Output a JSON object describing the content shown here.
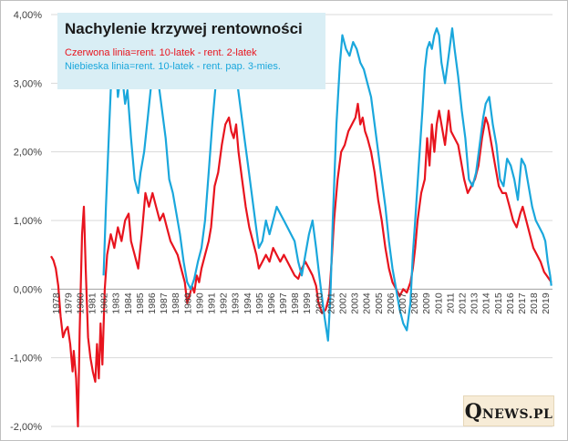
{
  "chart_data": {
    "type": "line",
    "title": "Nachylenie krzywej rentowności",
    "ylim": [
      -2.0,
      4.0
    ],
    "y_ticks": [
      "4,00%",
      "3,00%",
      "2,00%",
      "1,00%",
      "0,00%",
      "-1,00%",
      "-2,00%"
    ],
    "y_tick_values": [
      4,
      3,
      2,
      1,
      0,
      -1,
      -2
    ],
    "xlim": [
      1977.6,
      2019.6
    ],
    "x_ticks": [
      "1978",
      "1979",
      "1980",
      "1981",
      "1982",
      "1983",
      "1984",
      "1985",
      "1986",
      "1987",
      "1988",
      "1989",
      "1990",
      "1991",
      "1992",
      "1993",
      "1994",
      "1995",
      "1996",
      "1997",
      "1998",
      "1999",
      "2000",
      "2001",
      "2002",
      "2003",
      "2004",
      "2005",
      "2006",
      "2007",
      "2008",
      "2009",
      "2010",
      "2011",
      "2012",
      "2013",
      "2014",
      "2015",
      "2016",
      "2017",
      "2018",
      "2019"
    ],
    "grid": true,
    "legend": "top-left",
    "series": [
      {
        "name": "Czerwona linia=rent. 10-latek - rent. 2-latek",
        "color": "#e8141e",
        "points": [
          [
            1977.6,
            0.48
          ],
          [
            1977.8,
            0.42
          ],
          [
            1978.0,
            0.3
          ],
          [
            1978.2,
            0.05
          ],
          [
            1978.4,
            -0.4
          ],
          [
            1978.6,
            -0.7
          ],
          [
            1978.8,
            -0.6
          ],
          [
            1979.0,
            -0.55
          ],
          [
            1979.2,
            -0.8
          ],
          [
            1979.4,
            -1.2
          ],
          [
            1979.5,
            -0.9
          ],
          [
            1979.7,
            -1.3
          ],
          [
            1979.85,
            -2.0
          ],
          [
            1980.0,
            -0.6
          ],
          [
            1980.2,
            0.8
          ],
          [
            1980.35,
            1.2
          ],
          [
            1980.5,
            0.3
          ],
          [
            1980.7,
            -0.7
          ],
          [
            1980.9,
            -1.0
          ],
          [
            1981.1,
            -1.2
          ],
          [
            1981.3,
            -1.35
          ],
          [
            1981.45,
            -0.8
          ],
          [
            1981.6,
            -1.3
          ],
          [
            1981.75,
            -0.5
          ],
          [
            1981.9,
            -1.1
          ],
          [
            1982.1,
            0.0
          ],
          [
            1982.3,
            0.5
          ],
          [
            1982.6,
            0.8
          ],
          [
            1982.9,
            0.6
          ],
          [
            1983.2,
            0.9
          ],
          [
            1983.5,
            0.7
          ],
          [
            1983.8,
            1.0
          ],
          [
            1984.1,
            1.1
          ],
          [
            1984.3,
            0.7
          ],
          [
            1984.6,
            0.5
          ],
          [
            1984.9,
            0.3
          ],
          [
            1985.2,
            0.8
          ],
          [
            1985.5,
            1.4
          ],
          [
            1985.8,
            1.2
          ],
          [
            1986.1,
            1.4
          ],
          [
            1986.4,
            1.2
          ],
          [
            1986.7,
            1.0
          ],
          [
            1987.0,
            1.1
          ],
          [
            1987.3,
            0.9
          ],
          [
            1987.6,
            0.7
          ],
          [
            1987.9,
            0.6
          ],
          [
            1988.2,
            0.5
          ],
          [
            1988.5,
            0.3
          ],
          [
            1988.8,
            0.1
          ],
          [
            1989.0,
            -0.2
          ],
          [
            1989.2,
            -0.1
          ],
          [
            1989.4,
            0.05
          ],
          [
            1989.6,
            -0.05
          ],
          [
            1989.8,
            0.2
          ],
          [
            1990.0,
            0.1
          ],
          [
            1990.2,
            0.3
          ],
          [
            1990.5,
            0.5
          ],
          [
            1990.8,
            0.7
          ],
          [
            1991.0,
            0.9
          ],
          [
            1991.3,
            1.5
          ],
          [
            1991.6,
            1.7
          ],
          [
            1991.9,
            2.1
          ],
          [
            1992.2,
            2.4
          ],
          [
            1992.5,
            2.5
          ],
          [
            1992.7,
            2.3
          ],
          [
            1992.9,
            2.2
          ],
          [
            1993.1,
            2.4
          ],
          [
            1993.3,
            2.0
          ],
          [
            1993.6,
            1.6
          ],
          [
            1993.9,
            1.2
          ],
          [
            1994.2,
            0.9
          ],
          [
            1994.5,
            0.7
          ],
          [
            1994.8,
            0.5
          ],
          [
            1995.0,
            0.3
          ],
          [
            1995.3,
            0.4
          ],
          [
            1995.6,
            0.5
          ],
          [
            1995.9,
            0.4
          ],
          [
            1996.2,
            0.6
          ],
          [
            1996.5,
            0.5
          ],
          [
            1996.8,
            0.4
          ],
          [
            1997.1,
            0.5
          ],
          [
            1997.4,
            0.4
          ],
          [
            1997.7,
            0.3
          ],
          [
            1998.0,
            0.2
          ],
          [
            1998.3,
            0.15
          ],
          [
            1998.6,
            0.3
          ],
          [
            1998.9,
            0.4
          ],
          [
            1999.2,
            0.3
          ],
          [
            1999.5,
            0.2
          ],
          [
            1999.8,
            0.05
          ],
          [
            2000.0,
            -0.2
          ],
          [
            2000.3,
            -0.35
          ],
          [
            2000.6,
            -0.3
          ],
          [
            2000.9,
            -0.1
          ],
          [
            2001.1,
            0.4
          ],
          [
            2001.3,
            1.0
          ],
          [
            2001.6,
            1.6
          ],
          [
            2001.9,
            2.0
          ],
          [
            2002.2,
            2.1
          ],
          [
            2002.5,
            2.3
          ],
          [
            2002.8,
            2.4
          ],
          [
            2003.1,
            2.5
          ],
          [
            2003.3,
            2.7
          ],
          [
            2003.5,
            2.4
          ],
          [
            2003.7,
            2.5
          ],
          [
            2003.9,
            2.3
          ],
          [
            2004.1,
            2.2
          ],
          [
            2004.4,
            2.0
          ],
          [
            2004.7,
            1.7
          ],
          [
            2005.0,
            1.3
          ],
          [
            2005.3,
            1.0
          ],
          [
            2005.6,
            0.6
          ],
          [
            2005.9,
            0.3
          ],
          [
            2006.2,
            0.1
          ],
          [
            2006.5,
            0.0
          ],
          [
            2006.8,
            -0.1
          ],
          [
            2007.1,
            0.0
          ],
          [
            2007.4,
            -0.05
          ],
          [
            2007.7,
            0.1
          ],
          [
            2007.9,
            0.3
          ],
          [
            2008.1,
            0.6
          ],
          [
            2008.3,
            1.0
          ],
          [
            2008.6,
            1.4
          ],
          [
            2008.9,
            1.6
          ],
          [
            2009.1,
            2.2
          ],
          [
            2009.3,
            1.8
          ],
          [
            2009.5,
            2.4
          ],
          [
            2009.7,
            2.0
          ],
          [
            2009.9,
            2.4
          ],
          [
            2010.1,
            2.6
          ],
          [
            2010.3,
            2.4
          ],
          [
            2010.6,
            2.1
          ],
          [
            2010.9,
            2.6
          ],
          [
            2011.1,
            2.3
          ],
          [
            2011.4,
            2.2
          ],
          [
            2011.7,
            2.1
          ],
          [
            2011.9,
            1.9
          ],
          [
            2012.2,
            1.6
          ],
          [
            2012.5,
            1.4
          ],
          [
            2012.8,
            1.5
          ],
          [
            2013.1,
            1.6
          ],
          [
            2013.4,
            1.8
          ],
          [
            2013.7,
            2.2
          ],
          [
            2014.0,
            2.5
          ],
          [
            2014.2,
            2.4
          ],
          [
            2014.5,
            2.1
          ],
          [
            2014.8,
            1.8
          ],
          [
            2015.1,
            1.5
          ],
          [
            2015.4,
            1.4
          ],
          [
            2015.7,
            1.4
          ],
          [
            2016.0,
            1.2
          ],
          [
            2016.3,
            1.0
          ],
          [
            2016.6,
            0.9
          ],
          [
            2016.9,
            1.1
          ],
          [
            2017.1,
            1.2
          ],
          [
            2017.4,
            1.0
          ],
          [
            2017.7,
            0.8
          ],
          [
            2018.0,
            0.6
          ],
          [
            2018.3,
            0.5
          ],
          [
            2018.6,
            0.4
          ],
          [
            2018.9,
            0.25
          ],
          [
            2019.1,
            0.2
          ],
          [
            2019.3,
            0.15
          ],
          [
            2019.5,
            0.1
          ]
        ]
      },
      {
        "name": "Niebieska linia=rent. 10-latek - rent. pap. 3-mies.",
        "color": "#1aa7dc",
        "points": [
          [
            1982.0,
            0.2
          ],
          [
            1982.2,
            1.2
          ],
          [
            1982.5,
            2.5
          ],
          [
            1982.7,
            3.3
          ],
          [
            1982.85,
            4.0
          ],
          [
            1983.0,
            3.4
          ],
          [
            1983.2,
            2.8
          ],
          [
            1983.5,
            3.2
          ],
          [
            1983.8,
            2.7
          ],
          [
            1984.0,
            2.9
          ],
          [
            1984.3,
            2.2
          ],
          [
            1984.6,
            1.6
          ],
          [
            1984.9,
            1.4
          ],
          [
            1985.1,
            1.7
          ],
          [
            1985.4,
            2.0
          ],
          [
            1985.7,
            2.5
          ],
          [
            1986.0,
            3.0
          ],
          [
            1986.3,
            3.2
          ],
          [
            1986.6,
            3.0
          ],
          [
            1986.9,
            2.6
          ],
          [
            1987.2,
            2.2
          ],
          [
            1987.5,
            1.6
          ],
          [
            1987.8,
            1.4
          ],
          [
            1988.1,
            1.1
          ],
          [
            1988.4,
            0.8
          ],
          [
            1988.7,
            0.4
          ],
          [
            1989.0,
            0.1
          ],
          [
            1989.3,
            0.0
          ],
          [
            1989.6,
            0.15
          ],
          [
            1989.9,
            0.4
          ],
          [
            1990.2,
            0.6
          ],
          [
            1990.5,
            1.0
          ],
          [
            1990.8,
            1.7
          ],
          [
            1991.1,
            2.4
          ],
          [
            1991.4,
            3.0
          ],
          [
            1991.7,
            3.3
          ],
          [
            1992.0,
            3.6
          ],
          [
            1992.3,
            3.7
          ],
          [
            1992.6,
            3.4
          ],
          [
            1992.9,
            3.2
          ],
          [
            1993.2,
            3.0
          ],
          [
            1993.5,
            2.6
          ],
          [
            1993.8,
            2.2
          ],
          [
            1994.1,
            1.8
          ],
          [
            1994.4,
            1.4
          ],
          [
            1994.7,
            1.0
          ],
          [
            1995.0,
            0.6
          ],
          [
            1995.3,
            0.7
          ],
          [
            1995.6,
            1.0
          ],
          [
            1995.9,
            0.8
          ],
          [
            1996.2,
            1.0
          ],
          [
            1996.5,
            1.2
          ],
          [
            1996.8,
            1.1
          ],
          [
            1997.1,
            1.0
          ],
          [
            1997.4,
            0.9
          ],
          [
            1997.7,
            0.8
          ],
          [
            1998.0,
            0.7
          ],
          [
            1998.3,
            0.4
          ],
          [
            1998.6,
            0.2
          ],
          [
            1998.9,
            0.5
          ],
          [
            1999.2,
            0.8
          ],
          [
            1999.5,
            1.0
          ],
          [
            1999.8,
            0.6
          ],
          [
            2000.0,
            0.3
          ],
          [
            2000.2,
            0.0
          ],
          [
            2000.5,
            -0.4
          ],
          [
            2000.8,
            -0.75
          ],
          [
            2001.0,
            -0.1
          ],
          [
            2001.2,
            1.0
          ],
          [
            2001.5,
            2.4
          ],
          [
            2001.8,
            3.3
          ],
          [
            2002.0,
            3.7
          ],
          [
            2002.3,
            3.5
          ],
          [
            2002.6,
            3.4
          ],
          [
            2002.9,
            3.6
          ],
          [
            2003.2,
            3.5
          ],
          [
            2003.5,
            3.3
          ],
          [
            2003.8,
            3.2
          ],
          [
            2004.1,
            3.0
          ],
          [
            2004.4,
            2.8
          ],
          [
            2004.7,
            2.4
          ],
          [
            2005.0,
            2.0
          ],
          [
            2005.3,
            1.6
          ],
          [
            2005.6,
            1.2
          ],
          [
            2005.9,
            0.7
          ],
          [
            2006.2,
            0.3
          ],
          [
            2006.5,
            0.0
          ],
          [
            2006.8,
            -0.3
          ],
          [
            2007.1,
            -0.5
          ],
          [
            2007.4,
            -0.6
          ],
          [
            2007.7,
            -0.2
          ],
          [
            2007.9,
            0.5
          ],
          [
            2008.1,
            1.0
          ],
          [
            2008.4,
            1.8
          ],
          [
            2008.7,
            2.6
          ],
          [
            2008.9,
            3.2
          ],
          [
            2009.1,
            3.5
          ],
          [
            2009.3,
            3.6
          ],
          [
            2009.5,
            3.5
          ],
          [
            2009.7,
            3.7
          ],
          [
            2009.9,
            3.8
          ],
          [
            2010.1,
            3.7
          ],
          [
            2010.3,
            3.3
          ],
          [
            2010.6,
            3.0
          ],
          [
            2010.9,
            3.4
          ],
          [
            2011.2,
            3.8
          ],
          [
            2011.4,
            3.5
          ],
          [
            2011.7,
            3.1
          ],
          [
            2012.0,
            2.6
          ],
          [
            2012.3,
            2.2
          ],
          [
            2012.6,
            1.6
          ],
          [
            2012.9,
            1.5
          ],
          [
            2013.2,
            1.7
          ],
          [
            2013.5,
            2.1
          ],
          [
            2013.8,
            2.5
          ],
          [
            2014.0,
            2.7
          ],
          [
            2014.3,
            2.8
          ],
          [
            2014.6,
            2.4
          ],
          [
            2014.9,
            2.1
          ],
          [
            2015.2,
            1.6
          ],
          [
            2015.5,
            1.5
          ],
          [
            2015.8,
            1.9
          ],
          [
            2016.1,
            1.8
          ],
          [
            2016.4,
            1.6
          ],
          [
            2016.7,
            1.3
          ],
          [
            2017.0,
            1.9
          ],
          [
            2017.3,
            1.8
          ],
          [
            2017.6,
            1.5
          ],
          [
            2017.9,
            1.2
          ],
          [
            2018.2,
            1.0
          ],
          [
            2018.5,
            0.9
          ],
          [
            2018.8,
            0.8
          ],
          [
            2019.0,
            0.7
          ],
          [
            2019.2,
            0.4
          ],
          [
            2019.4,
            0.2
          ],
          [
            2019.5,
            0.05
          ]
        ]
      }
    ]
  },
  "legend_box": {
    "title": "Nachylenie krzywej rentowności",
    "red_text": "Czerwona linia=rent. 10-latek - rent. 2-latek",
    "blue_text": "Niebieska linia=rent. 10-latek - rent. pap. 3-mies."
  },
  "logo": {
    "q": "Q",
    "rest": "NEWS.PL"
  }
}
